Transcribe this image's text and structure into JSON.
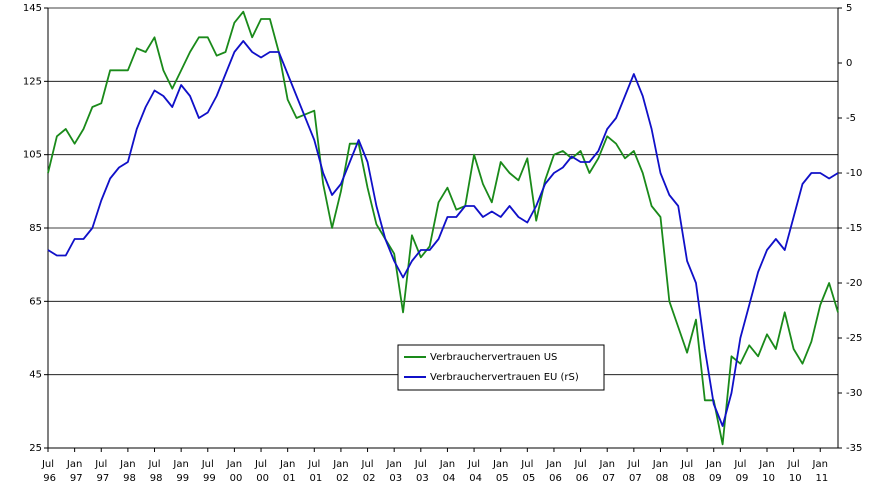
{
  "chart_data": {
    "type": "line",
    "categories": [
      "Jul 96",
      null,
      null,
      "Jan 97",
      null,
      null,
      "Jul 97",
      null,
      null,
      "Jan 98",
      null,
      null,
      "Jul 98",
      null,
      null,
      "Jan 99",
      null,
      null,
      "Jul 99",
      null,
      null,
      "Jan 00",
      null,
      null,
      "Jul 00",
      null,
      null,
      "Jan 01",
      null,
      null,
      "Jul 01",
      null,
      null,
      "Jan 02",
      null,
      null,
      "Jul 02",
      null,
      null,
      "Jan 03",
      null,
      null,
      "Jul 03",
      null,
      null,
      "Jan 04",
      null,
      null,
      "Jul 04",
      null,
      null,
      "Jan 05",
      null,
      null,
      "Jul 05",
      null,
      null,
      "Jan 06",
      null,
      null,
      "Jul 06",
      null,
      null,
      "Jan 07",
      null,
      null,
      "Jul 07",
      null,
      null,
      "Jan 08",
      null,
      null,
      "Jul 08",
      null,
      null,
      "Jan 09",
      null,
      null,
      "Jul 09",
      null,
      null,
      "Jan 10",
      null,
      null,
      "Jul 10",
      null,
      null,
      "Jan 11",
      null,
      null
    ],
    "series": [
      {
        "name": "Verbrauchervertrauen US",
        "color": "#1a8a1a",
        "axis": "y",
        "values": [
          100,
          110,
          112,
          108,
          112,
          118,
          119,
          128,
          128,
          128,
          134,
          133,
          137,
          128,
          123,
          128,
          133,
          137,
          137,
          132,
          133,
          141,
          144,
          137,
          142,
          142,
          133,
          120,
          115,
          116,
          117,
          97,
          85,
          95,
          108,
          108,
          96,
          86,
          82,
          78,
          62,
          83,
          77,
          80,
          92,
          96,
          90,
          91,
          105,
          97,
          92,
          103,
          100,
          98,
          104,
          87,
          98,
          105,
          106,
          104,
          106,
          100,
          104,
          110,
          108,
          104,
          106,
          100,
          91,
          88,
          65,
          58,
          51,
          60,
          38,
          38,
          26,
          50,
          48,
          53,
          50,
          56,
          52,
          62,
          52,
          48,
          54,
          64,
          70,
          62
        ]
      },
      {
        "name": "Verbrauchervertrauen EU (rS)",
        "color": "#1010c8",
        "axis": "y2",
        "values": [
          -17,
          -17.5,
          -17.5,
          -16,
          -16,
          -15,
          -12.5,
          -10.5,
          -9.5,
          -9,
          -6,
          -4,
          -2.5,
          -3,
          -4,
          -2,
          -3,
          -5,
          -4.5,
          -3,
          -1,
          1,
          2,
          1,
          0.5,
          1,
          1,
          -1,
          -3,
          -5,
          -7,
          -10,
          -12,
          -11,
          -9,
          -7,
          -9,
          -13,
          -16,
          -18,
          -19.5,
          -18,
          -17,
          -17,
          -16,
          -14,
          -14,
          -13,
          -13,
          -14,
          -13.5,
          -14,
          -13,
          -14,
          -14.5,
          -13,
          -11,
          -10,
          -9.5,
          -8.5,
          -9,
          -9,
          -8,
          -6,
          -5,
          -3,
          -1,
          -3,
          -6,
          -10,
          -12,
          -13,
          -18,
          -20,
          -26,
          -31,
          -33,
          -30,
          -25,
          -22,
          -19,
          -17,
          -16,
          -17,
          -14,
          -11,
          -10,
          -10,
          -10.5,
          -10
        ]
      }
    ],
    "ylim": [
      25,
      145
    ],
    "yticks": [
      25,
      45,
      65,
      85,
      105,
      125,
      145
    ],
    "y2lim": [
      -35,
      5
    ],
    "y2ticks": [
      -35,
      -30,
      -25,
      -20,
      -15,
      -10,
      -5,
      0,
      5
    ],
    "grid": true
  }
}
